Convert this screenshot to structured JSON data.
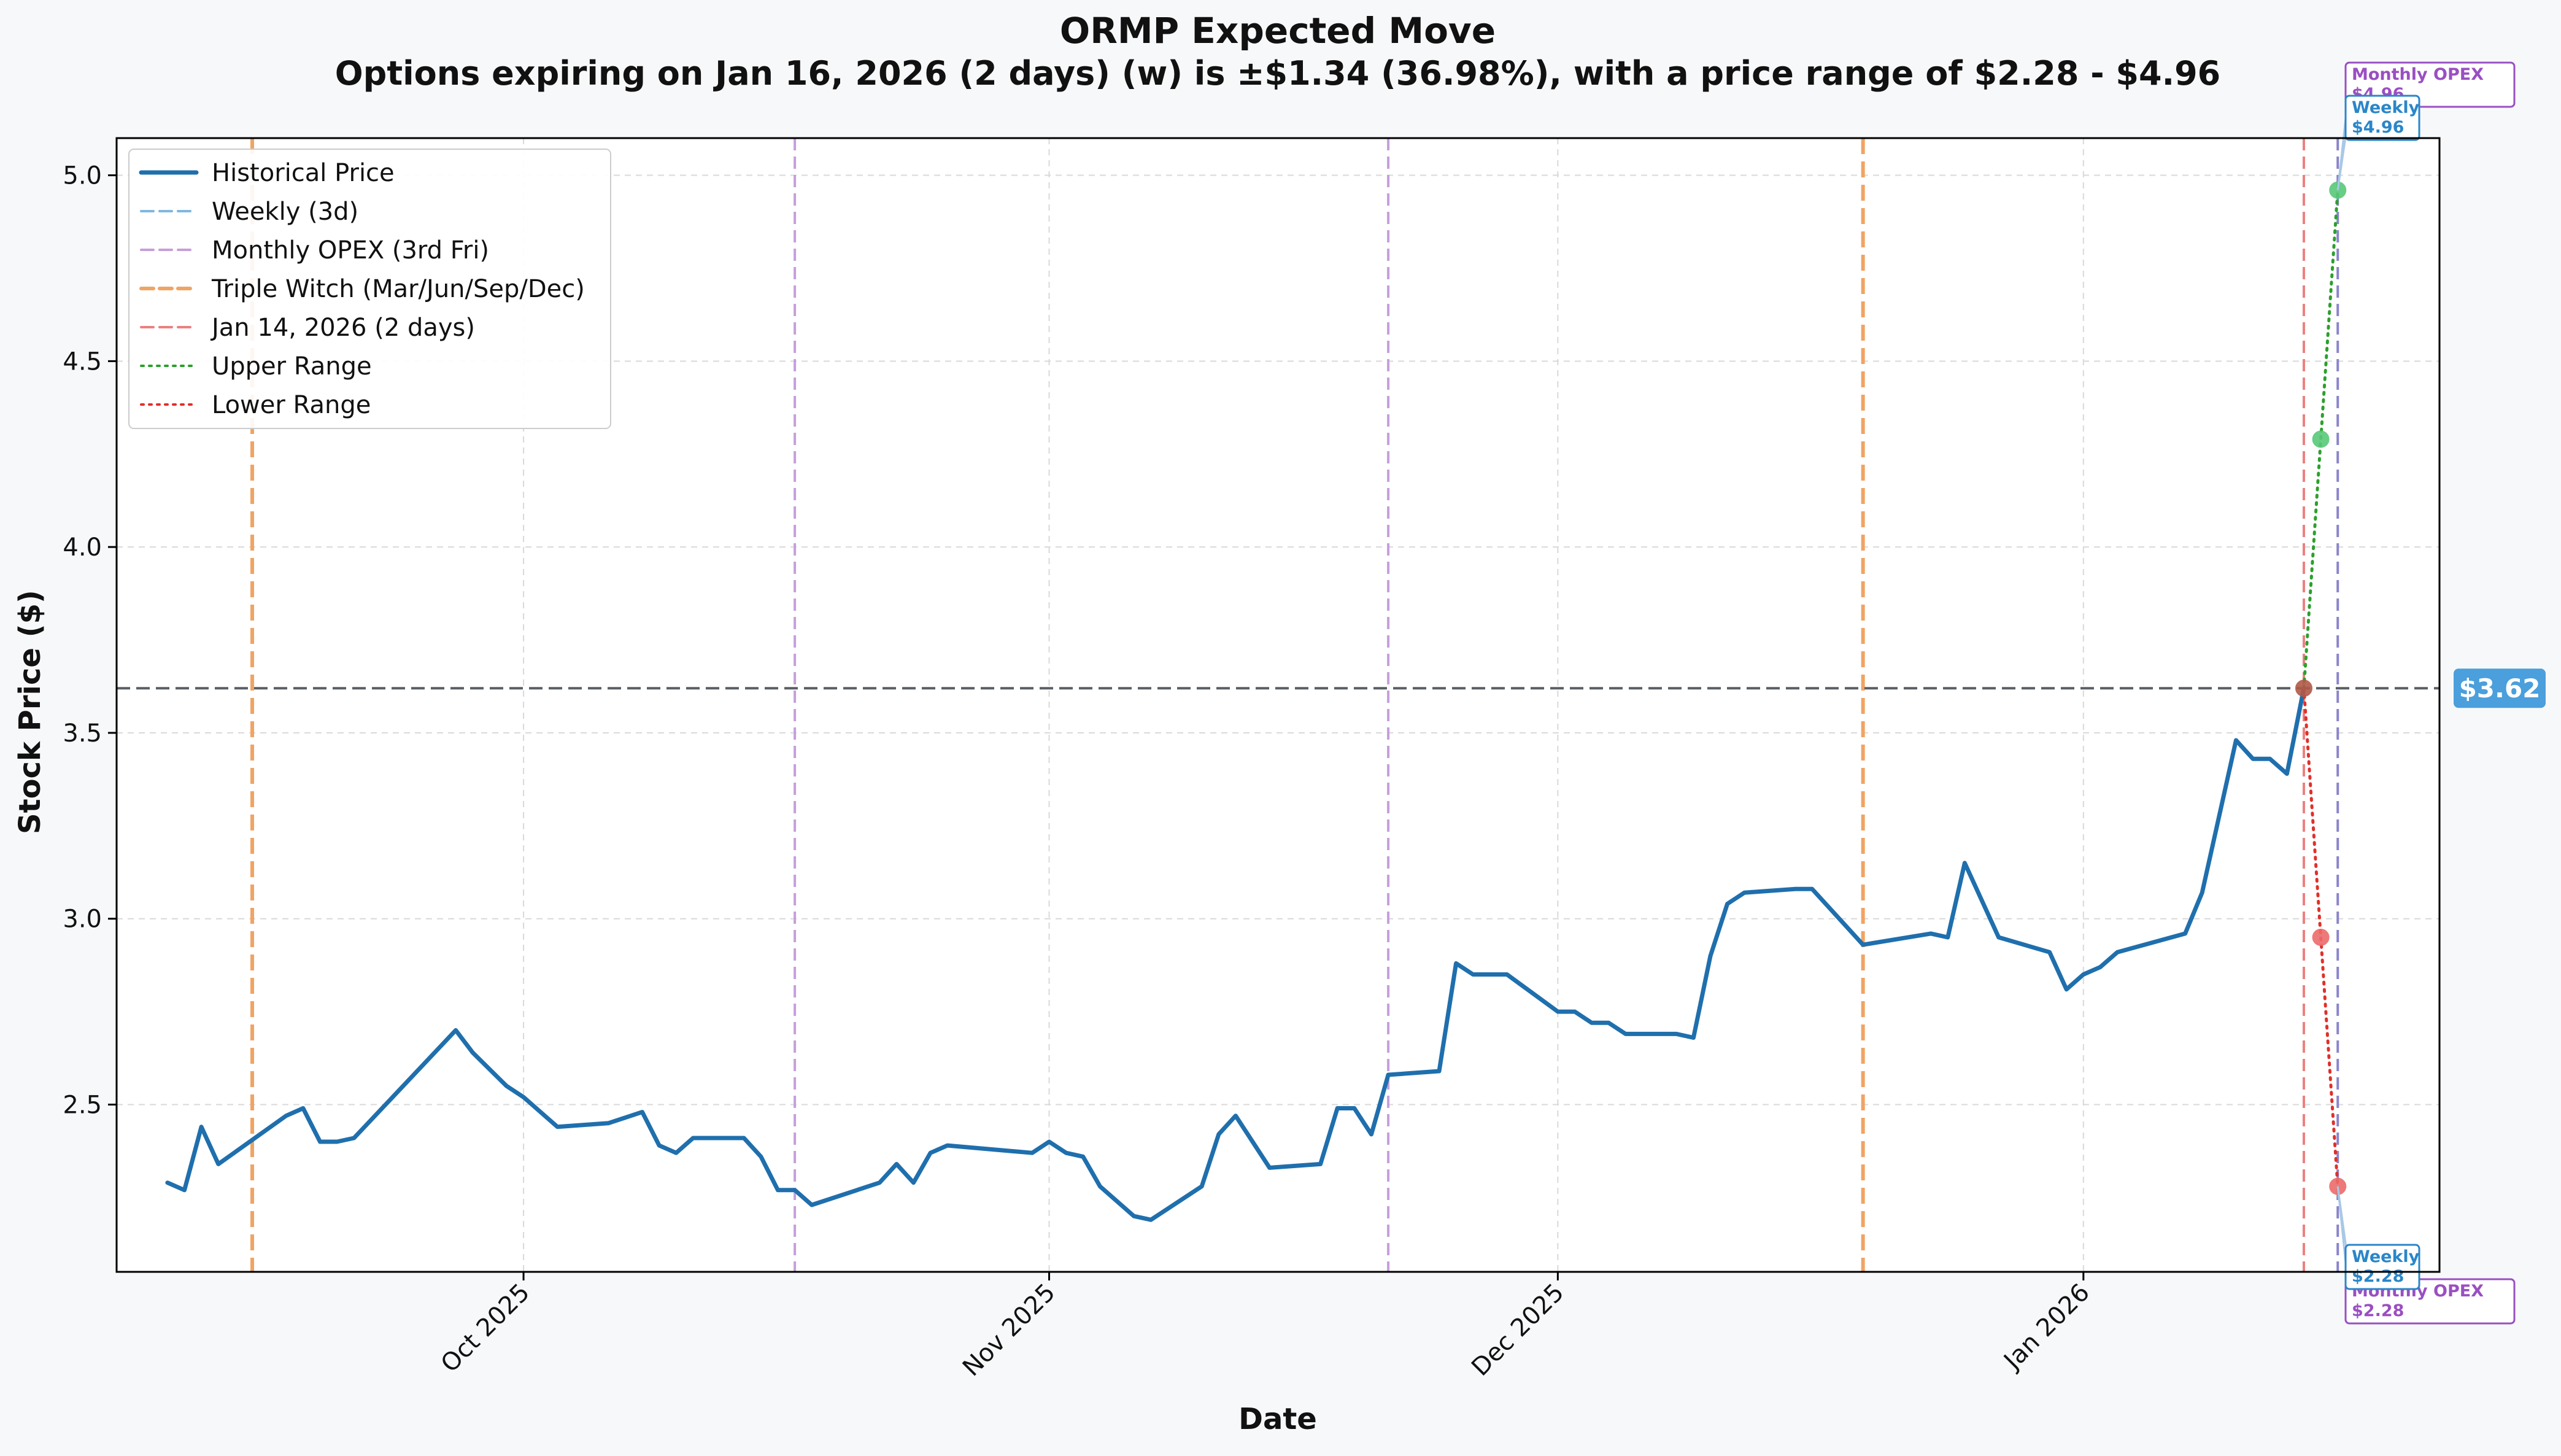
{
  "chart_data": {
    "type": "line",
    "title": "ORMP Expected Move",
    "subtitle": "Options expiring on Jan 16, 2026 (2 days) (w) is ±$1.34 (36.98%), with a price range of $2.28 - $4.96",
    "xlabel": "Date",
    "ylabel": "Stock Price ($)",
    "xlim": [
      "2025-09-07",
      "2026-01-22"
    ],
    "ylim": [
      2.05,
      5.1
    ],
    "grid": true,
    "legend_position": "top-left",
    "x_ticks": [
      {
        "date": "2025-10-01",
        "label": "Oct 2025"
      },
      {
        "date": "2025-11-01",
        "label": "Nov 2025"
      },
      {
        "date": "2025-12-01",
        "label": "Dec 2025"
      },
      {
        "date": "2026-01-01",
        "label": "Jan 2026"
      }
    ],
    "y_ticks": [
      {
        "value": 2.5,
        "label": "2.5"
      },
      {
        "value": 3.0,
        "label": "3.0"
      },
      {
        "value": 3.5,
        "label": "3.5"
      },
      {
        "value": 4.0,
        "label": "4.0"
      },
      {
        "value": 4.5,
        "label": "4.5"
      },
      {
        "value": 5.0,
        "label": "5.0"
      }
    ],
    "legend": [
      {
        "label": "Historical Price",
        "style": "solid",
        "color": "#1f6fad"
      },
      {
        "label": "Weekly (3d)",
        "style": "dashed",
        "color": "#7fb8e0"
      },
      {
        "label": "Monthly OPEX (3rd Fri)",
        "style": "dashed",
        "color": "#c59fdc"
      },
      {
        "label": "Triple Witch (Mar/Jun/Sep/Dec)",
        "style": "dashed",
        "color": "#f0a464"
      },
      {
        "label": "Jan 14, 2026 (2 days)",
        "style": "dashed",
        "color": "#ec8080"
      },
      {
        "label": "Upper Range",
        "style": "dotted",
        "color": "#2ca02c"
      },
      {
        "label": "Lower Range",
        "style": "dotted",
        "color": "#e0302a"
      }
    ],
    "series": [
      {
        "name": "Historical Price",
        "color": "#1f6fad",
        "points": [
          [
            "2025-09-10",
            2.29
          ],
          [
            "2025-09-11",
            2.27
          ],
          [
            "2025-09-12",
            2.44
          ],
          [
            "2025-09-13",
            2.34
          ],
          [
            "2025-09-17",
            2.47
          ],
          [
            "2025-09-18",
            2.49
          ],
          [
            "2025-09-19",
            2.4
          ],
          [
            "2025-09-20",
            2.4
          ],
          [
            "2025-09-21",
            2.41
          ],
          [
            "2025-09-27",
            2.7
          ],
          [
            "2025-09-28",
            2.64
          ],
          [
            "2025-09-30",
            2.55
          ],
          [
            "2025-10-01",
            2.52
          ],
          [
            "2025-10-03",
            2.44
          ],
          [
            "2025-10-06",
            2.45
          ],
          [
            "2025-10-08",
            2.48
          ],
          [
            "2025-10-09",
            2.39
          ],
          [
            "2025-10-10",
            2.37
          ],
          [
            "2025-10-11",
            2.41
          ],
          [
            "2025-10-14",
            2.41
          ],
          [
            "2025-10-15",
            2.36
          ],
          [
            "2025-10-16",
            2.27
          ],
          [
            "2025-10-17",
            2.27
          ],
          [
            "2025-10-18",
            2.23
          ],
          [
            "2025-10-22",
            2.29
          ],
          [
            "2025-10-23",
            2.34
          ],
          [
            "2025-10-24",
            2.29
          ],
          [
            "2025-10-25",
            2.37
          ],
          [
            "2025-10-26",
            2.39
          ],
          [
            "2025-10-31",
            2.37
          ],
          [
            "2025-11-01",
            2.4
          ],
          [
            "2025-11-02",
            2.37
          ],
          [
            "2025-11-03",
            2.36
          ],
          [
            "2025-11-04",
            2.28
          ],
          [
            "2025-11-06",
            2.2
          ],
          [
            "2025-11-07",
            2.19
          ],
          [
            "2025-11-10",
            2.28
          ],
          [
            "2025-11-11",
            2.42
          ],
          [
            "2025-11-12",
            2.47
          ],
          [
            "2025-11-14",
            2.33
          ],
          [
            "2025-11-17",
            2.34
          ],
          [
            "2025-11-18",
            2.49
          ],
          [
            "2025-11-19",
            2.49
          ],
          [
            "2025-11-20",
            2.42
          ],
          [
            "2025-11-21",
            2.58
          ],
          [
            "2025-11-24",
            2.59
          ],
          [
            "2025-11-25",
            2.88
          ],
          [
            "2025-11-26",
            2.85
          ],
          [
            "2025-11-28",
            2.85
          ],
          [
            "2025-12-01",
            2.75
          ],
          [
            "2025-12-02",
            2.75
          ],
          [
            "2025-12-03",
            2.72
          ],
          [
            "2025-12-04",
            2.72
          ],
          [
            "2025-12-05",
            2.69
          ],
          [
            "2025-12-08",
            2.69
          ],
          [
            "2025-12-09",
            2.68
          ],
          [
            "2025-12-10",
            2.9
          ],
          [
            "2025-12-11",
            3.04
          ],
          [
            "2025-12-12",
            3.07
          ],
          [
            "2025-12-15",
            3.08
          ],
          [
            "2025-12-16",
            3.08
          ],
          [
            "2025-12-19",
            2.93
          ],
          [
            "2025-12-23",
            2.96
          ],
          [
            "2025-12-24",
            2.95
          ],
          [
            "2025-12-25",
            3.15
          ],
          [
            "2025-12-27",
            2.95
          ],
          [
            "2025-12-30",
            2.91
          ],
          [
            "2025-12-31",
            2.81
          ],
          [
            "2026-01-01",
            2.85
          ],
          [
            "2026-01-02",
            2.87
          ],
          [
            "2026-01-03",
            2.91
          ],
          [
            "2026-01-07",
            2.96
          ],
          [
            "2026-01-08",
            3.07
          ],
          [
            "2026-01-10",
            3.48
          ],
          [
            "2026-01-11",
            3.43
          ],
          [
            "2026-01-12",
            3.43
          ],
          [
            "2026-01-13",
            3.39
          ],
          [
            "2026-01-14",
            3.62
          ]
        ]
      },
      {
        "name": "Upper Range",
        "color": "#2ca02c",
        "points": [
          [
            "2026-01-14",
            3.62
          ],
          [
            "2026-01-15",
            4.29
          ],
          [
            "2026-01-16",
            4.96
          ]
        ]
      },
      {
        "name": "Lower Range",
        "color": "#e0302a",
        "points": [
          [
            "2026-01-14",
            3.62
          ],
          [
            "2026-01-15",
            2.95
          ],
          [
            "2026-01-16",
            2.28
          ]
        ]
      }
    ],
    "markers": [
      {
        "date": "2026-01-14",
        "value": 3.62,
        "color": "#b05a48"
      },
      {
        "date": "2026-01-15",
        "value": 4.29,
        "color": "#58c878"
      },
      {
        "date": "2026-01-16",
        "value": 4.96,
        "color": "#58c878"
      },
      {
        "date": "2026-01-15",
        "value": 2.95,
        "color": "#ec6b6b"
      },
      {
        "date": "2026-01-16",
        "value": 2.28,
        "color": "#ec6b6b"
      }
    ],
    "vertical_lines": [
      {
        "date": "2025-09-15",
        "kind": "Triple Witch",
        "color": "#f0a464"
      },
      {
        "date": "2025-10-17",
        "kind": "Monthly OPEX",
        "color": "#c59fdc"
      },
      {
        "date": "2025-11-21",
        "kind": "Monthly OPEX",
        "color": "#c59fdc"
      },
      {
        "date": "2025-12-19",
        "kind": "Triple Witch",
        "color": "#f0a464"
      },
      {
        "date": "2026-01-14",
        "kind": "Jan 14, 2026 (2 days)",
        "color": "#ec8080"
      },
      {
        "date": "2026-01-16",
        "kind": "Weekly / Monthly OPEX",
        "color": "#8a84cc"
      }
    ],
    "current_price": {
      "value": 3.62,
      "label": "$3.62"
    },
    "annotations": [
      {
        "text": "Monthly OPEX\n$4.96",
        "color": "#9a4fc2",
        "position": "above"
      },
      {
        "text": "Weekly\n$4.96",
        "color": "#2a86c8",
        "position": "above"
      },
      {
        "text": "Weekly\n$2.28",
        "color": "#2a86c8",
        "position": "below"
      },
      {
        "text": "Monthly OPEX\n$2.28",
        "color": "#9a4fc2",
        "position": "below"
      }
    ]
  }
}
